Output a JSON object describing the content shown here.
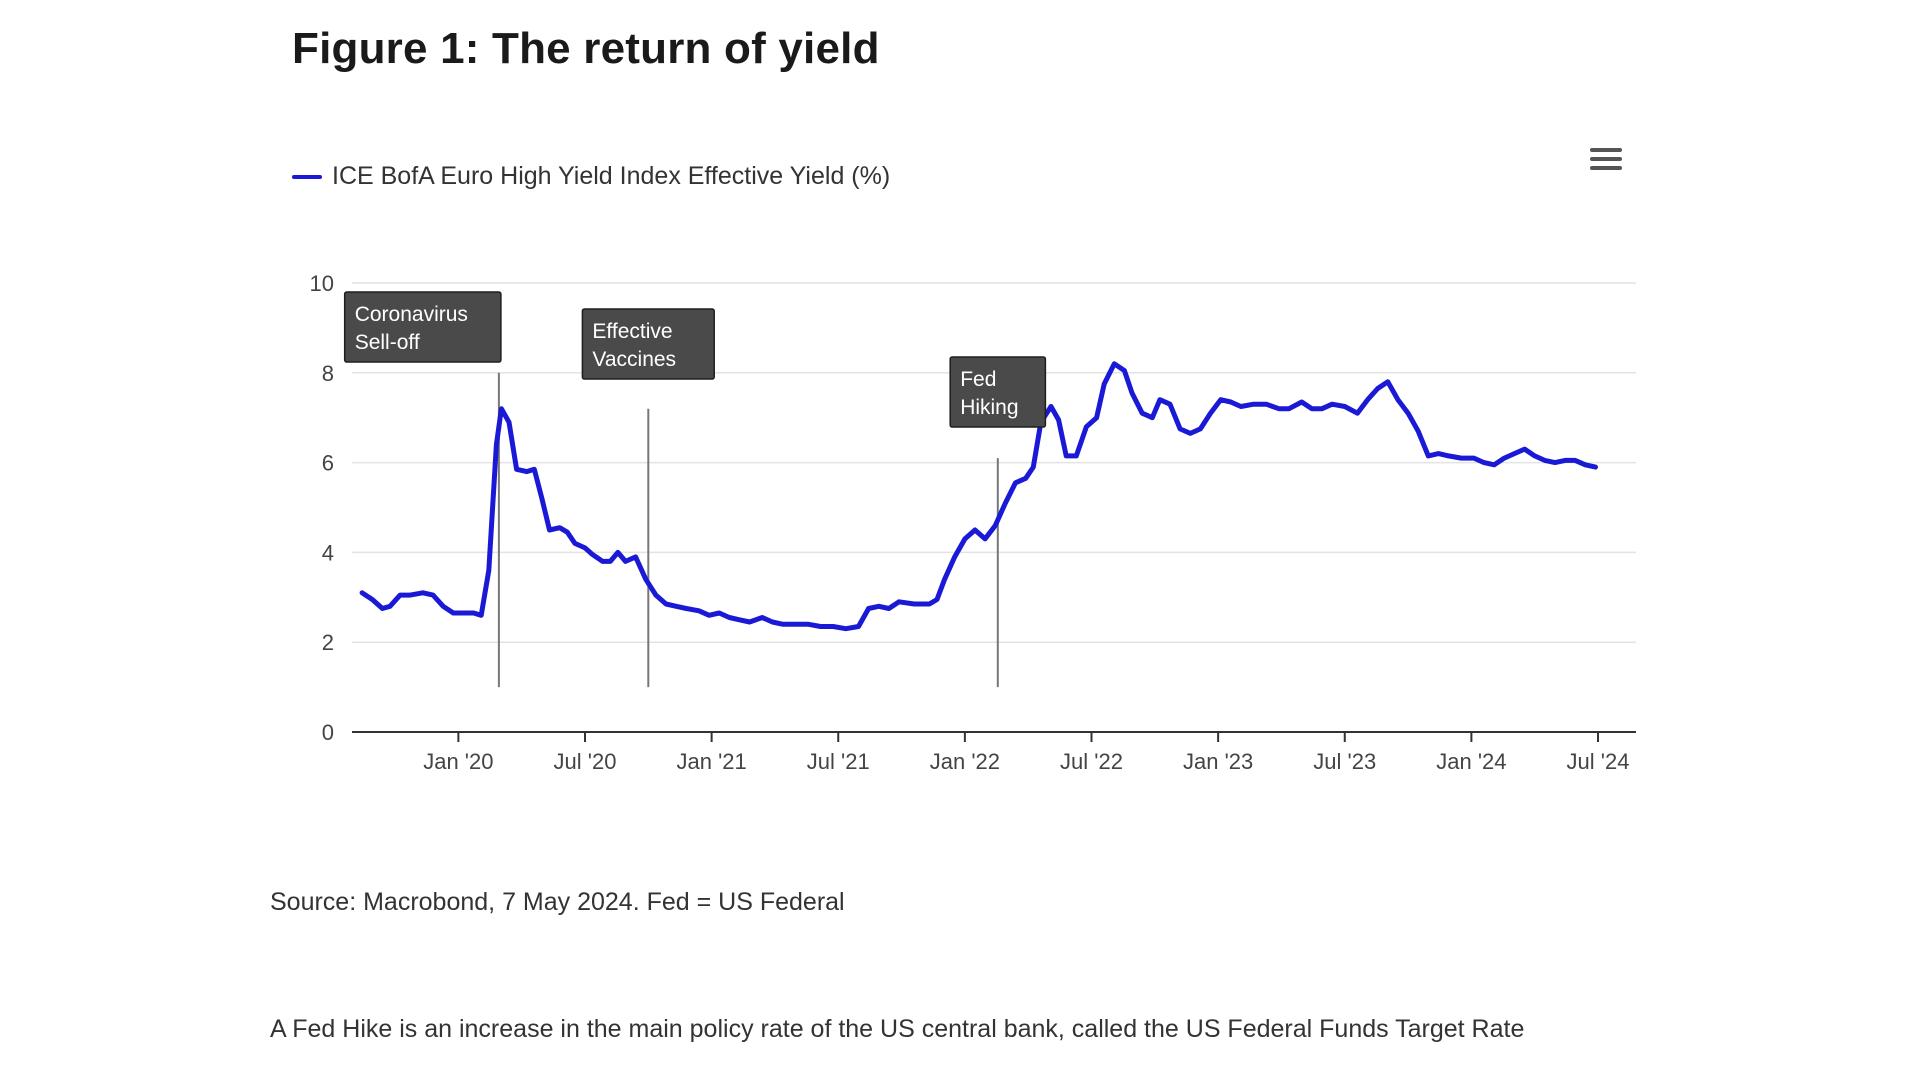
{
  "title": "Figure 1: The return of yield",
  "legend_label": "ICE BofA Euro High Yield Index Effective Yield (%)",
  "series_color": "#1a1ad6",
  "menu_icon": "hamburger-menu-icon",
  "source": "Source: Macrobond, 7 May 2024. Fed = US Federal",
  "note": "A Fed Hike is an increase in the main policy rate of the US central bank, called the US Federal Funds Target Rate",
  "chart_data": {
    "type": "line",
    "title": "Figure 1: The return of yield",
    "xlabel": "",
    "ylabel": "",
    "ylim": [
      0,
      10
    ],
    "yticks": [
      "0",
      "2",
      "4",
      "6",
      "8",
      "10"
    ],
    "xlim": [
      2019.58,
      2024.65
    ],
    "xticks": [
      {
        "label": "Jan '20",
        "t": 2020.0
      },
      {
        "label": "Jul '20",
        "t": 2020.5
      },
      {
        "label": "Jan '21",
        "t": 2021.0
      },
      {
        "label": "Jul '21",
        "t": 2021.5
      },
      {
        "label": "Jan '22",
        "t": 2022.0
      },
      {
        "label": "Jul '22",
        "t": 2022.5
      },
      {
        "label": "Jan '23",
        "t": 2023.0
      },
      {
        "label": "Jul '23",
        "t": 2023.5
      },
      {
        "label": "Jan '24",
        "t": 2024.0
      },
      {
        "label": "Jul '24",
        "t": 2024.5
      }
    ],
    "series": [
      {
        "name": "ICE BofA Euro High Yield Index Effective Yield (%)",
        "points": [
          [
            2019.62,
            3.1
          ],
          [
            2019.66,
            2.95
          ],
          [
            2019.7,
            2.75
          ],
          [
            2019.73,
            2.8
          ],
          [
            2019.77,
            3.05
          ],
          [
            2019.81,
            3.05
          ],
          [
            2019.86,
            3.1
          ],
          [
            2019.9,
            3.05
          ],
          [
            2019.94,
            2.8
          ],
          [
            2019.98,
            2.65
          ],
          [
            2020.02,
            2.65
          ],
          [
            2020.06,
            2.65
          ],
          [
            2020.09,
            2.6
          ],
          [
            2020.12,
            3.6
          ],
          [
            2020.15,
            6.4
          ],
          [
            2020.17,
            7.2
          ],
          [
            2020.2,
            6.9
          ],
          [
            2020.23,
            5.85
          ],
          [
            2020.27,
            5.8
          ],
          [
            2020.3,
            5.85
          ],
          [
            2020.33,
            5.2
          ],
          [
            2020.36,
            4.5
          ],
          [
            2020.4,
            4.55
          ],
          [
            2020.43,
            4.45
          ],
          [
            2020.46,
            4.2
          ],
          [
            2020.5,
            4.1
          ],
          [
            2020.53,
            3.95
          ],
          [
            2020.57,
            3.8
          ],
          [
            2020.6,
            3.8
          ],
          [
            2020.63,
            4.0
          ],
          [
            2020.66,
            3.8
          ],
          [
            2020.7,
            3.9
          ],
          [
            2020.74,
            3.4
          ],
          [
            2020.78,
            3.05
          ],
          [
            2020.82,
            2.85
          ],
          [
            2020.86,
            2.8
          ],
          [
            2020.9,
            2.75
          ],
          [
            2020.95,
            2.7
          ],
          [
            2020.99,
            2.6
          ],
          [
            2021.03,
            2.65
          ],
          [
            2021.07,
            2.55
          ],
          [
            2021.11,
            2.5
          ],
          [
            2021.15,
            2.45
          ],
          [
            2021.2,
            2.55
          ],
          [
            2021.24,
            2.45
          ],
          [
            2021.28,
            2.4
          ],
          [
            2021.33,
            2.4
          ],
          [
            2021.38,
            2.4
          ],
          [
            2021.43,
            2.35
          ],
          [
            2021.48,
            2.35
          ],
          [
            2021.53,
            2.3
          ],
          [
            2021.58,
            2.35
          ],
          [
            2021.62,
            2.75
          ],
          [
            2021.66,
            2.8
          ],
          [
            2021.7,
            2.75
          ],
          [
            2021.74,
            2.9
          ],
          [
            2021.8,
            2.85
          ],
          [
            2021.86,
            2.85
          ],
          [
            2021.89,
            2.95
          ],
          [
            2021.92,
            3.4
          ],
          [
            2021.96,
            3.9
          ],
          [
            2022.0,
            4.3
          ],
          [
            2022.04,
            4.5
          ],
          [
            2022.08,
            4.3
          ],
          [
            2022.12,
            4.6
          ],
          [
            2022.16,
            5.1
          ],
          [
            2022.2,
            5.55
          ],
          [
            2022.24,
            5.65
          ],
          [
            2022.27,
            5.9
          ],
          [
            2022.3,
            6.9
          ],
          [
            2022.34,
            7.25
          ],
          [
            2022.37,
            6.95
          ],
          [
            2022.4,
            6.15
          ],
          [
            2022.44,
            6.15
          ],
          [
            2022.48,
            6.8
          ],
          [
            2022.52,
            7.0
          ],
          [
            2022.55,
            7.75
          ],
          [
            2022.59,
            8.2
          ],
          [
            2022.63,
            8.05
          ],
          [
            2022.66,
            7.55
          ],
          [
            2022.7,
            7.1
          ],
          [
            2022.74,
            7.0
          ],
          [
            2022.77,
            7.4
          ],
          [
            2022.81,
            7.3
          ],
          [
            2022.85,
            6.75
          ],
          [
            2022.89,
            6.65
          ],
          [
            2022.93,
            6.75
          ],
          [
            2022.97,
            7.1
          ],
          [
            2023.01,
            7.4
          ],
          [
            2023.05,
            7.35
          ],
          [
            2023.09,
            7.25
          ],
          [
            2023.14,
            7.3
          ],
          [
            2023.19,
            7.3
          ],
          [
            2023.24,
            7.2
          ],
          [
            2023.28,
            7.2
          ],
          [
            2023.33,
            7.35
          ],
          [
            2023.37,
            7.2
          ],
          [
            2023.41,
            7.2
          ],
          [
            2023.45,
            7.3
          ],
          [
            2023.5,
            7.25
          ],
          [
            2023.55,
            7.1
          ],
          [
            2023.59,
            7.4
          ],
          [
            2023.63,
            7.65
          ],
          [
            2023.67,
            7.8
          ],
          [
            2023.71,
            7.4
          ],
          [
            2023.75,
            7.1
          ],
          [
            2023.79,
            6.7
          ],
          [
            2023.83,
            6.15
          ],
          [
            2023.87,
            6.2
          ],
          [
            2023.91,
            6.15
          ],
          [
            2023.96,
            6.1
          ],
          [
            2024.01,
            6.1
          ],
          [
            2024.05,
            6.0
          ],
          [
            2024.09,
            5.95
          ],
          [
            2024.13,
            6.1
          ],
          [
            2024.17,
            6.2
          ],
          [
            2024.21,
            6.3
          ],
          [
            2024.25,
            6.15
          ],
          [
            2024.29,
            6.05
          ],
          [
            2024.33,
            6.0
          ],
          [
            2024.37,
            6.05
          ],
          [
            2024.41,
            6.05
          ],
          [
            2024.45,
            5.95
          ],
          [
            2024.49,
            5.9
          ]
        ]
      }
    ],
    "annotations": [
      {
        "label": [
          "Coronavirus",
          "Sell-off"
        ],
        "t": 2020.16,
        "line_top": 8.0
      },
      {
        "label": [
          "Effective",
          "Vaccines"
        ],
        "t": 2020.75,
        "line_top": 7.2
      },
      {
        "label": [
          "Fed",
          "Hiking"
        ],
        "t": 2022.13,
        "line_top": 6.1
      }
    ],
    "grid": true,
    "legend": "top-left"
  }
}
